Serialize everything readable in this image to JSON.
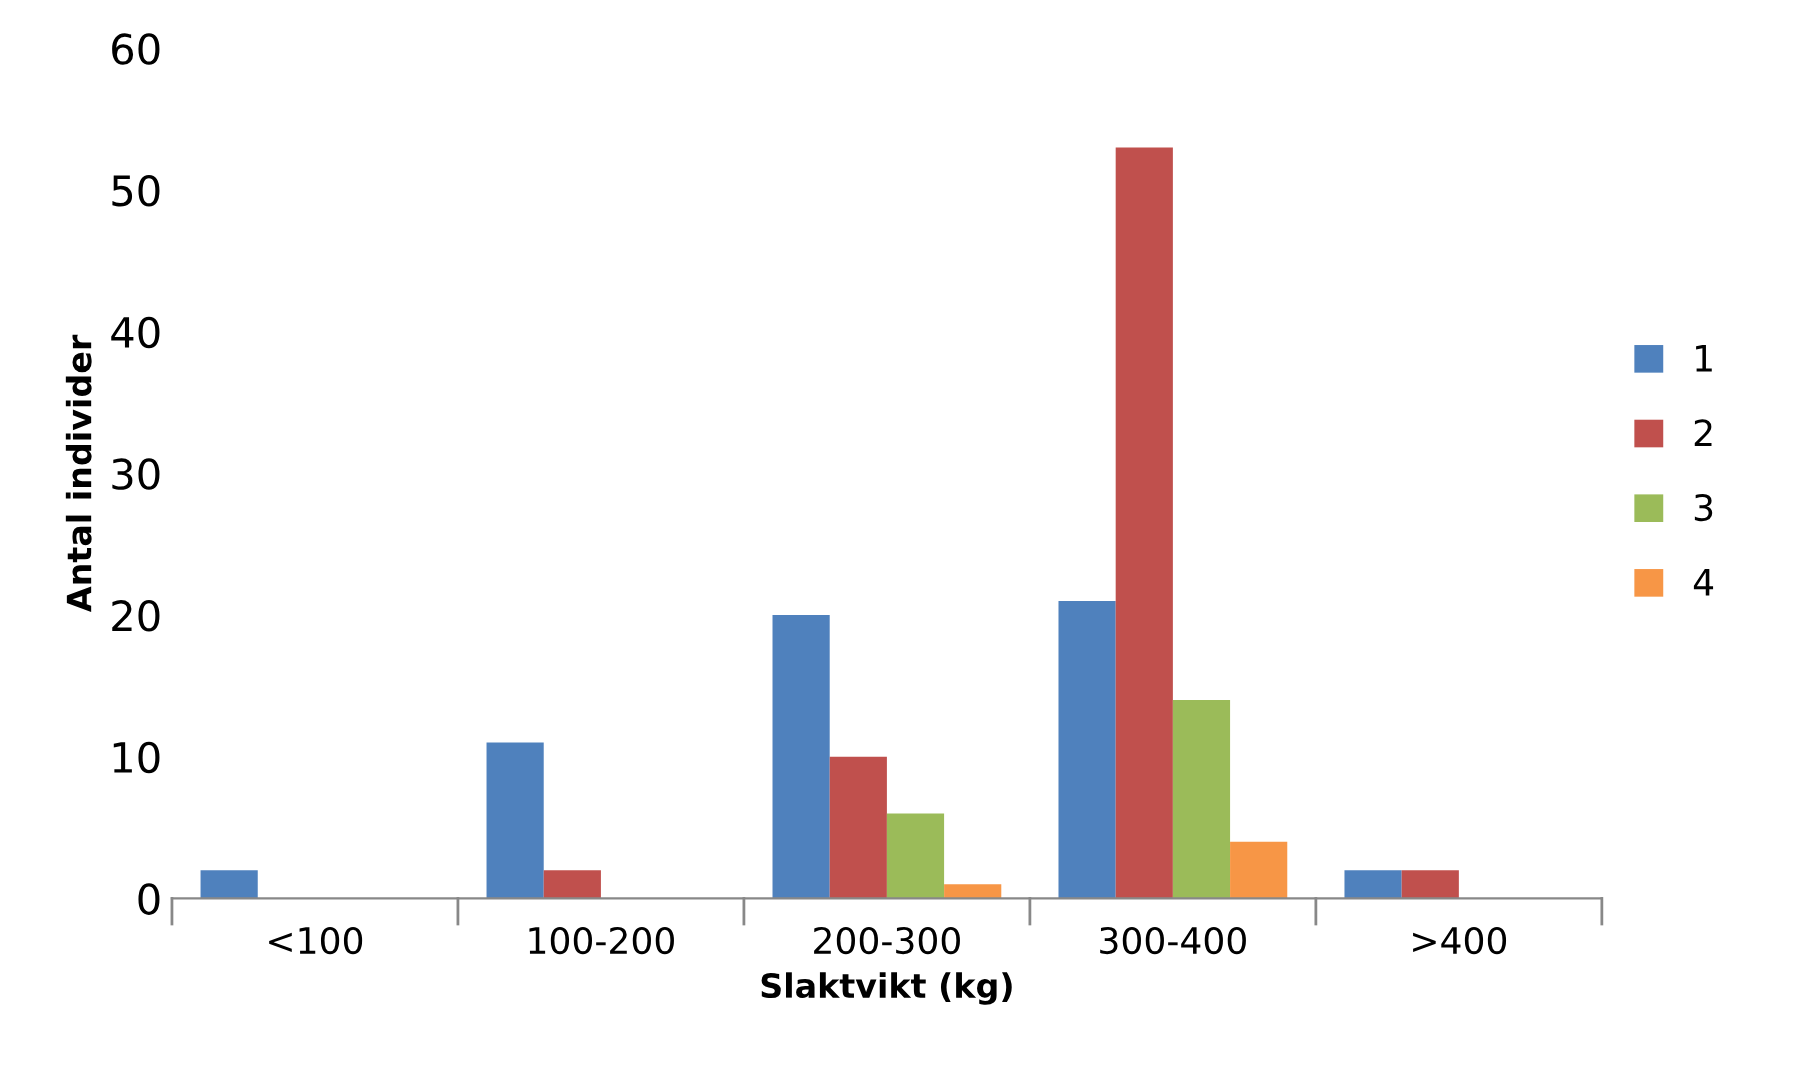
{
  "chart_data": {
    "type": "bar",
    "xlabel": "Slaktvikt (kg)",
    "ylabel": "Antal individer",
    "categories": [
      "<100",
      "100-200",
      "200-300",
      "300-400",
      ">400"
    ],
    "series": [
      {
        "name": "1",
        "color": "#4f81bd",
        "values": [
          2,
          11,
          20,
          21,
          2
        ]
      },
      {
        "name": "2",
        "color": "#c0504d",
        "values": [
          0,
          2,
          10,
          53,
          2
        ]
      },
      {
        "name": "3",
        "color": "#9bbb59",
        "values": [
          0,
          0,
          6,
          14,
          0
        ]
      },
      {
        "name": "4",
        "color": "#f79646",
        "values": [
          0,
          0,
          1,
          4,
          0
        ]
      }
    ],
    "ylim": [
      0,
      60
    ],
    "yticks": [
      0,
      10,
      20,
      30,
      40,
      50,
      60
    ],
    "grid": false,
    "legend": "right"
  }
}
